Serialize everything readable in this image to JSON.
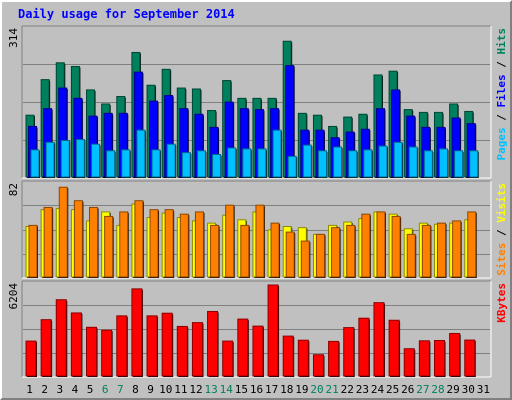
{
  "title": "Daily usage for September 2014",
  "colors": {
    "hits": "#00805c",
    "files": "#0000ff",
    "pages": "#00c0ff",
    "visits": "#ffff00",
    "sites": "#ff8000",
    "kbytes": "#ff0000",
    "weekend_day": "#00805c",
    "weekday": "#000000"
  },
  "chart_data": [
    {
      "type": "bar",
      "title": "Daily usage for September 2014",
      "categories": [
        "1",
        "2",
        "3",
        "4",
        "5",
        "6",
        "7",
        "8",
        "9",
        "10",
        "11",
        "12",
        "13",
        "14",
        "15",
        "16",
        "17",
        "18",
        "19",
        "20",
        "21",
        "22",
        "23",
        "24",
        "25",
        "26",
        "27",
        "28",
        "29",
        "30",
        "31"
      ],
      "ymax_label": "314",
      "ylim": [
        0,
        314
      ],
      "legend": [
        "Pages",
        "Files",
        "Hits"
      ],
      "series": [
        {
          "name": "Hits",
          "values": [
            132,
            208,
            244,
            236,
            186,
            156,
            172,
            266,
            196,
            230,
            190,
            188,
            142,
            206,
            168,
            168,
            168,
            290,
            136,
            132,
            108,
            128,
            134,
            218,
            226,
            144,
            138,
            138,
            156,
            140,
            0
          ]
        },
        {
          "name": "Files",
          "values": [
            108,
            146,
            190,
            168,
            130,
            136,
            136,
            224,
            162,
            174,
            146,
            134,
            106,
            160,
            146,
            144,
            146,
            238,
            100,
            100,
            84,
            96,
            102,
            146,
            186,
            130,
            106,
            106,
            126,
            114,
            0
          ]
        },
        {
          "name": "Pages",
          "values": [
            58,
            74,
            78,
            80,
            70,
            56,
            58,
            100,
            58,
            70,
            52,
            56,
            48,
            62,
            60,
            60,
            100,
            44,
            68,
            56,
            64,
            56,
            58,
            66,
            74,
            64,
            56,
            60,
            56,
            56,
            0
          ]
        }
      ]
    },
    {
      "type": "bar",
      "categories": [
        "1",
        "2",
        "3",
        "4",
        "5",
        "6",
        "7",
        "8",
        "9",
        "10",
        "11",
        "12",
        "13",
        "14",
        "15",
        "16",
        "17",
        "18",
        "19",
        "20",
        "21",
        "22",
        "23",
        "24",
        "25",
        "26",
        "27",
        "28",
        "29",
        "30",
        "31"
      ],
      "ymax_label": "82",
      "ylim": [
        0,
        82
      ],
      "legend": [
        "Sites",
        "Visits"
      ],
      "series": [
        {
          "name": "Visits",
          "values": [
            45,
            60,
            61,
            60,
            50,
            58,
            46,
            65,
            53,
            57,
            53,
            50,
            48,
            55,
            51,
            58,
            42,
            45,
            44,
            38,
            46,
            49,
            52,
            58,
            56,
            43,
            48,
            47,
            48,
            51,
            0
          ]
        },
        {
          "name": "Sites",
          "values": [
            46,
            62,
            80,
            68,
            62,
            54,
            58,
            68,
            60,
            60,
            56,
            58,
            46,
            64,
            46,
            64,
            48,
            40,
            32,
            38,
            44,
            46,
            56,
            58,
            54,
            38,
            46,
            48,
            50,
            58,
            0
          ]
        }
      ]
    },
    {
      "type": "bar",
      "categories": [
        "1",
        "2",
        "3",
        "4",
        "5",
        "6",
        "7",
        "8",
        "9",
        "10",
        "11",
        "12",
        "13",
        "14",
        "15",
        "16",
        "17",
        "18",
        "19",
        "20",
        "21",
        "22",
        "23",
        "24",
        "25",
        "26",
        "27",
        "28",
        "29",
        "30",
        "31"
      ],
      "ymax_label": "6204",
      "ylim": [
        0,
        6204
      ],
      "legend": [
        "KBytes"
      ],
      "series": [
        {
          "name": "KBytes",
          "values": [
            2380,
            3840,
            5200,
            4300,
            3320,
            3120,
            4100,
            5940,
            4100,
            4280,
            3380,
            3640,
            4400,
            2380,
            3880,
            3400,
            6204,
            2720,
            2440,
            1450,
            2360,
            3300,
            3940,
            5000,
            3800,
            1860,
            2400,
            2420,
            2900,
            2450,
            0
          ]
        }
      ]
    }
  ]
}
